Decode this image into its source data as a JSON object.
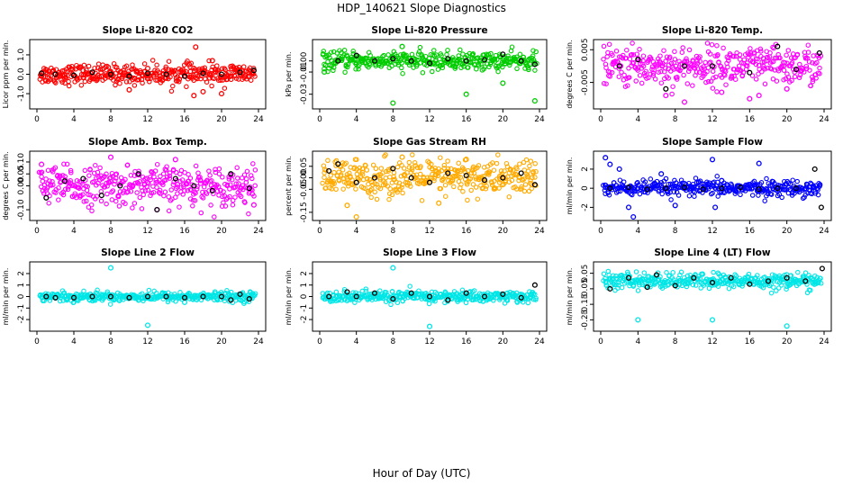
{
  "figure": {
    "title": "HDP_140621  Slope Diagnostics",
    "xlabel": "Hour of Day (UTC)"
  },
  "chart_data": [
    {
      "type": "scatter",
      "title": "Slope Li-820 CO2",
      "ylabel": "Licor ppm per min.",
      "x_ticks": [
        "0",
        "4",
        "8",
        "12",
        "16",
        "20",
        "24"
      ],
      "y_ticks": [
        "-1.0",
        "0.0",
        "1.0"
      ],
      "y_tick_values": [
        -1,
        0,
        1
      ],
      "xlim": [
        0,
        24
      ],
      "ylim": [
        -1.6,
        1.6
      ],
      "color": "#ff0000",
      "noise_scale": 0.25,
      "series": [
        {
          "name": "all samples",
          "color": "#ff0000",
          "x": [
            1,
            3,
            5,
            8,
            10,
            12,
            14,
            16.5,
            17,
            17.2,
            18,
            19,
            20,
            21,
            22,
            23
          ],
          "y": [
            0.1,
            -0.05,
            0.2,
            0.1,
            -0.8,
            0.3,
            -0.2,
            0.5,
            -1.1,
            1.4,
            -0.9,
            0.7,
            -1.0,
            0.4,
            0.2,
            -0.1
          ]
        },
        {
          "name": "hourly",
          "color": "#000000",
          "x": [
            0.5,
            2,
            4,
            6,
            8,
            10,
            12,
            14,
            16,
            18,
            20,
            22,
            23.5
          ],
          "y": [
            0.05,
            0.0,
            -0.05,
            0.1,
            0.0,
            -0.1,
            0.05,
            0.0,
            -0.1,
            0.05,
            0.0,
            0.1,
            0.2
          ]
        }
      ]
    },
    {
      "type": "scatter",
      "title": "Slope Li-820 Pressure",
      "ylabel": "kPa per min.",
      "x_ticks": [
        "0",
        "4",
        "8",
        "12",
        "16",
        "20",
        "24"
      ],
      "y_ticks": [
        "-0.03",
        "-0.01",
        "0.00"
      ],
      "y_tick_values": [
        -0.03,
        -0.01,
        0.0
      ],
      "xlim": [
        0,
        24
      ],
      "ylim": [
        -0.04,
        0.016
      ],
      "color": "#00cc00",
      "noise_scale": 0.004,
      "series": [
        {
          "name": "all samples",
          "color": "#00cc00",
          "x": [
            0.5,
            8,
            9,
            16,
            20,
            23.5
          ],
          "y": [
            -0.01,
            -0.038,
            0.013,
            -0.03,
            -0.02,
            -0.036
          ]
        },
        {
          "name": "hourly",
          "color": "#000000",
          "x": [
            2,
            4,
            6,
            8,
            10,
            12,
            14,
            16,
            18,
            20,
            22,
            23.5
          ],
          "y": [
            0.0,
            0.005,
            0.0,
            0.002,
            0.0,
            -0.002,
            0.002,
            0.0,
            0.001,
            0.006,
            0.0,
            -0.003
          ]
        }
      ]
    },
    {
      "type": "scatter",
      "title": "Slope Li-820 Temp.",
      "ylabel": "degrees C per min.",
      "x_ticks": [
        "0",
        "4",
        "8",
        "12",
        "16",
        "20",
        "24"
      ],
      "y_ticks": [
        "-0.005",
        "0.005"
      ],
      "y_tick_values": [
        -0.005,
        0.005
      ],
      "xlim": [
        0,
        24
      ],
      "ylim": [
        -0.012,
        0.007
      ],
      "color": "#ff00ff",
      "noise_scale": 0.003,
      "series": [
        {
          "name": "all samples",
          "color": "#ff00ff",
          "x": [
            7,
            9,
            13,
            16,
            17,
            20
          ],
          "y": [
            -0.009,
            -0.011,
            -0.008,
            -0.01,
            -0.009,
            -0.007
          ]
        },
        {
          "name": "hourly",
          "color": "#000000",
          "x": [
            2,
            4,
            7,
            9,
            12,
            16,
            19,
            21,
            23.5
          ],
          "y": [
            0.0,
            0.002,
            -0.007,
            0.0,
            0.0,
            -0.002,
            0.006,
            -0.001,
            0.004
          ]
        }
      ]
    },
    {
      "type": "scatter",
      "title": "Slope Amb. Box Temp.",
      "ylabel": "degrees C per min.",
      "x_ticks": [
        "0",
        "4",
        "8",
        "12",
        "16",
        "20",
        "24"
      ],
      "y_ticks": [
        "-0.10",
        "0.00",
        "0.05",
        "0.10"
      ],
      "y_tick_values": [
        -0.1,
        0.0,
        0.05,
        0.1
      ],
      "xlim": [
        0,
        24
      ],
      "ylim": [
        -0.13,
        0.13
      ],
      "color": "#ff00ff",
      "noise_scale": 0.04,
      "series": [
        {
          "name": "all samples",
          "color": "#ff00ff",
          "x": [
            0.5,
            8,
            13,
            15,
            23.5
          ],
          "y": [
            0.09,
            0.12,
            -0.1,
            0.11,
            -0.08
          ]
        },
        {
          "name": "hourly",
          "color": "#000000",
          "x": [
            1,
            3,
            5,
            7,
            9,
            11,
            13,
            15,
            17,
            19,
            21,
            23
          ],
          "y": [
            -0.05,
            0.02,
            0.03,
            -0.04,
            0.0,
            0.05,
            -0.1,
            0.03,
            0.0,
            -0.02,
            0.05,
            -0.01
          ]
        }
      ]
    },
    {
      "type": "scatter",
      "title": "Slope Gas Stream RH",
      "ylabel": "percent per min.",
      "x_ticks": [
        "0",
        "4",
        "8",
        "12",
        "16",
        "20",
        "24"
      ],
      "y_ticks": [
        "-0.15",
        "-0.05",
        "0.00",
        "0.05"
      ],
      "y_tick_values": [
        -0.15,
        -0.05,
        0.0,
        0.05
      ],
      "xlim": [
        0,
        24
      ],
      "ylim": [
        -0.17,
        0.1
      ],
      "color": "#ffaa00",
      "noise_scale": 0.04,
      "series": [
        {
          "name": "all samples",
          "color": "#ffaa00",
          "x": [
            3,
            4,
            9,
            13,
            16
          ],
          "y": [
            -0.12,
            -0.17,
            0.09,
            -0.11,
            0.08
          ]
        },
        {
          "name": "hourly",
          "color": "#000000",
          "x": [
            1,
            2,
            4,
            6,
            8,
            10,
            12,
            14,
            16,
            18,
            20,
            22,
            23.5
          ],
          "y": [
            0.03,
            0.06,
            -0.02,
            0.0,
            0.04,
            0.0,
            -0.02,
            0.02,
            0.01,
            -0.01,
            0.0,
            0.02,
            -0.03
          ]
        }
      ]
    },
    {
      "type": "scatter",
      "title": "Slope Sample Flow",
      "ylabel": "ml/min per min.",
      "x_ticks": [
        "0",
        "4",
        "8",
        "12",
        "16",
        "20",
        "24"
      ],
      "y_ticks": [
        "-2",
        "0",
        "2"
      ],
      "y_tick_values": [
        -2,
        0,
        2
      ],
      "xlim": [
        0,
        24
      ],
      "ylim": [
        -3,
        3.5
      ],
      "color": "#0000ff",
      "noise_scale": 0.4,
      "series": [
        {
          "name": "all samples",
          "color": "#0000ff",
          "x": [
            0.5,
            1,
            2,
            3,
            3.5,
            6.5,
            8,
            12,
            12.3,
            13,
            17
          ],
          "y": [
            3.2,
            2.5,
            2.0,
            -2.0,
            -3.0,
            1.5,
            -1.8,
            3.0,
            -2.0,
            0.8,
            2.6
          ]
        },
        {
          "name": "hourly",
          "color": "#000000",
          "x": [
            1,
            3,
            5,
            7,
            9,
            11,
            13,
            15,
            17,
            19,
            21,
            23,
            23.7
          ],
          "y": [
            0.0,
            0.1,
            -0.1,
            0.0,
            0.1,
            -0.1,
            0.0,
            0.1,
            -0.1,
            0.0,
            0.0,
            2.0,
            -2.0
          ]
        }
      ]
    },
    {
      "type": "scatter",
      "title": "Slope Line 2 Flow",
      "ylabel": "ml/min per min.",
      "x_ticks": [
        "0",
        "4",
        "8",
        "12",
        "16",
        "20",
        "24"
      ],
      "y_ticks": [
        "-2",
        "-1",
        "0",
        "1",
        "2"
      ],
      "y_tick_values": [
        -2,
        -1,
        0,
        1,
        2
      ],
      "xlim": [
        0,
        24
      ],
      "ylim": [
        -2.7,
        2.7
      ],
      "color": "#00e6e6",
      "noise_scale": 0.2,
      "series": [
        {
          "name": "all samples",
          "color": "#00e6e6",
          "x": [
            8,
            12,
            16
          ],
          "y": [
            2.5,
            -2.5,
            -0.5
          ]
        },
        {
          "name": "hourly",
          "color": "#000000",
          "x": [
            1,
            2,
            4,
            6,
            8,
            10,
            12,
            14,
            16,
            18,
            20,
            21,
            22,
            23
          ],
          "y": [
            0.0,
            -0.1,
            -0.1,
            0.0,
            0.0,
            -0.1,
            0.0,
            0.0,
            -0.1,
            0.0,
            0.0,
            -0.3,
            0.2,
            -0.2
          ]
        }
      ]
    },
    {
      "type": "scatter",
      "title": "Slope Line 3 Flow",
      "ylabel": "ml/min per min.",
      "x_ticks": [
        "0",
        "4",
        "8",
        "12",
        "16",
        "20",
        "24"
      ],
      "y_ticks": [
        "-2",
        "-1",
        "0",
        "1",
        "2"
      ],
      "y_tick_values": [
        -2,
        -1,
        0,
        1,
        2
      ],
      "xlim": [
        0,
        24
      ],
      "ylim": [
        -2.7,
        2.7
      ],
      "color": "#00e6e6",
      "noise_scale": 0.25,
      "series": [
        {
          "name": "all samples",
          "color": "#00e6e6",
          "x": [
            8,
            12
          ],
          "y": [
            2.5,
            -2.6
          ]
        },
        {
          "name": "hourly",
          "color": "#000000",
          "x": [
            1,
            3,
            4,
            6,
            8,
            10,
            12,
            14,
            16,
            18,
            20,
            22,
            23.5
          ],
          "y": [
            0.0,
            0.4,
            0.0,
            0.3,
            -0.2,
            0.3,
            0.0,
            -0.3,
            0.3,
            0.0,
            0.2,
            -0.1,
            1.0
          ]
        }
      ]
    },
    {
      "type": "scatter",
      "title": "Slope Line 4 (LT) Flow",
      "ylabel": "ml/min per min.",
      "x_ticks": [
        "0",
        "4",
        "8",
        "12",
        "16",
        "20",
        "24"
      ],
      "y_ticks": [
        "-0.25",
        "-0.15",
        "-0.05",
        "0.05"
      ],
      "y_tick_values": [
        -0.25,
        -0.15,
        -0.05,
        0.05
      ],
      "xlim": [
        0,
        24
      ],
      "ylim": [
        -0.3,
        0.1
      ],
      "color": "#00e6e6",
      "noise_scale": 0.025,
      "series": [
        {
          "name": "all samples",
          "color": "#00e6e6",
          "x": [
            4,
            12,
            20
          ],
          "y": [
            -0.25,
            -0.25,
            -0.29
          ]
        },
        {
          "name": "hourly",
          "color": "#000000",
          "x": [
            1,
            3,
            5,
            6,
            8,
            10,
            12,
            14,
            16,
            18,
            20,
            22,
            23.8
          ],
          "y": [
            -0.05,
            0.02,
            -0.04,
            0.04,
            -0.03,
            0.02,
            -0.01,
            0.02,
            -0.02,
            0.0,
            0.02,
            0.0,
            0.08
          ]
        }
      ]
    }
  ]
}
